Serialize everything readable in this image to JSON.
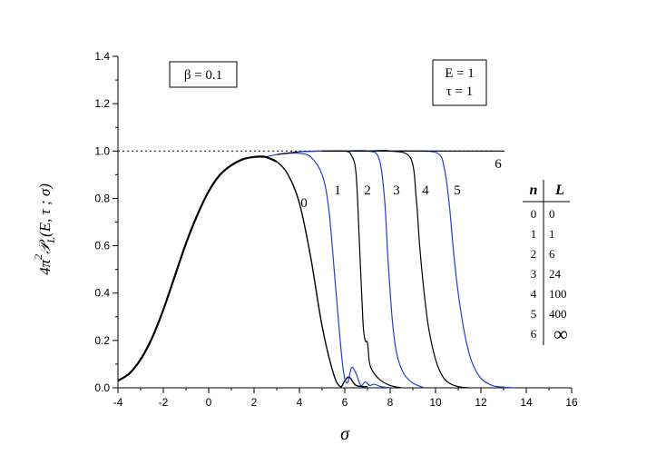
{
  "chart_data": {
    "type": "line",
    "xlabel": "σ",
    "ylabel": {
      "prefix": "4π",
      "superscript": "2",
      "symbol": "𝒫",
      "subscript": "L",
      "args": "(E, τ ; σ)"
    },
    "xlim": [
      -4,
      16
    ],
    "ylim": [
      0.0,
      1.4
    ],
    "x_ticks": [
      "-4",
      "-2",
      "0",
      "2",
      "4",
      "6",
      "8",
      "10",
      "12",
      "14",
      "16"
    ],
    "y_ticks": [
      "0.0",
      "0.2",
      "0.4",
      "0.6",
      "0.8",
      "1.0",
      "1.2",
      "1.4"
    ],
    "reference_line": {
      "y": 1.0,
      "style": "dotted"
    },
    "annotations": {
      "beta_box": "β = 0.1",
      "param_box": [
        "E = 1",
        "τ = 1"
      ]
    },
    "legend_table": {
      "headers": [
        "n",
        "L"
      ],
      "rows": [
        [
          "0",
          "0"
        ],
        [
          "1",
          "1"
        ],
        [
          "2",
          "6"
        ],
        [
          "3",
          "24"
        ],
        [
          "4",
          "100"
        ],
        [
          "5",
          "400"
        ],
        [
          "6",
          "∞"
        ]
      ]
    },
    "series": [
      {
        "label": "0",
        "color": "#000000",
        "x": [
          -4,
          -3.5,
          -3,
          -2.5,
          -2,
          -1.5,
          -1,
          -0.5,
          0,
          0.5,
          1,
          1.5,
          2,
          2.5,
          3,
          3.5,
          4,
          4.5,
          5,
          5.5,
          5.8,
          6.0,
          6.2,
          6.5,
          7
        ],
        "y": [
          0.03,
          0.06,
          0.12,
          0.21,
          0.33,
          0.47,
          0.61,
          0.73,
          0.83,
          0.9,
          0.94,
          0.965,
          0.975,
          0.975,
          0.955,
          0.9,
          0.78,
          0.55,
          0.26,
          0.06,
          0.005,
          0.03,
          0.045,
          0.01,
          0.005
        ]
      },
      {
        "label": "1",
        "color": "#1f3fd6",
        "x": [
          2.5,
          3,
          3.5,
          4,
          4.5,
          5,
          5.3,
          5.6,
          5.9,
          6.1,
          6.3,
          6.5,
          6.7,
          6.9,
          7.1,
          7.3,
          7.6,
          8
        ],
        "y": [
          0.975,
          0.985,
          0.99,
          0.99,
          0.975,
          0.9,
          0.75,
          0.42,
          0.1,
          0.02,
          0.085,
          0.06,
          0.01,
          0.025,
          0.01,
          0.015,
          0.005,
          0.0
        ]
      },
      {
        "label": "2",
        "color": "#000000",
        "x": [
          3,
          4,
          5,
          6,
          6.3,
          6.5,
          6.65,
          6.8,
          6.9,
          7.0,
          7.1,
          7.3,
          7.6,
          8.0,
          8.5
        ],
        "y": [
          0.985,
          0.997,
          1.0,
          1.0,
          0.98,
          0.9,
          0.6,
          0.28,
          0.2,
          0.19,
          0.1,
          0.06,
          0.03,
          0.01,
          0.0
        ]
      },
      {
        "label": "3",
        "color": "#1f3fd6",
        "x": [
          4,
          5,
          6,
          7,
          7.5,
          7.75,
          7.9,
          8.1,
          8.3,
          8.6,
          9.0,
          9.5
        ],
        "y": [
          0.997,
          1.0,
          1.0,
          1.0,
          0.97,
          0.8,
          0.55,
          0.28,
          0.14,
          0.06,
          0.02,
          0.0
        ]
      },
      {
        "label": "4",
        "color": "#000000",
        "x": [
          5,
          6,
          7,
          8,
          8.9,
          9.15,
          9.3,
          9.5,
          9.7,
          10.0,
          10.3,
          10.6,
          11.0,
          11.5
        ],
        "y": [
          1.0,
          1.0,
          1.0,
          1.0,
          0.97,
          0.8,
          0.6,
          0.4,
          0.25,
          0.12,
          0.05,
          0.02,
          0.005,
          0.0
        ]
      },
      {
        "label": "5",
        "color": "#1f3fd6",
        "x": [
          6,
          7,
          8,
          9,
          10.1,
          10.4,
          10.6,
          10.8,
          11.0,
          11.3,
          11.6,
          12.0,
          12.5,
          13.0,
          13.5
        ],
        "y": [
          1.0,
          1.0,
          1.0,
          1.0,
          0.99,
          0.92,
          0.78,
          0.57,
          0.4,
          0.22,
          0.11,
          0.04,
          0.01,
          0.003,
          0.0
        ]
      },
      {
        "label": "6",
        "color": "#000000",
        "x": [
          6,
          8,
          10,
          12,
          13.05
        ],
        "y": [
          1.0,
          1.0,
          1.0,
          1.0,
          1.0
        ]
      }
    ],
    "grid": false,
    "legend": "right"
  }
}
